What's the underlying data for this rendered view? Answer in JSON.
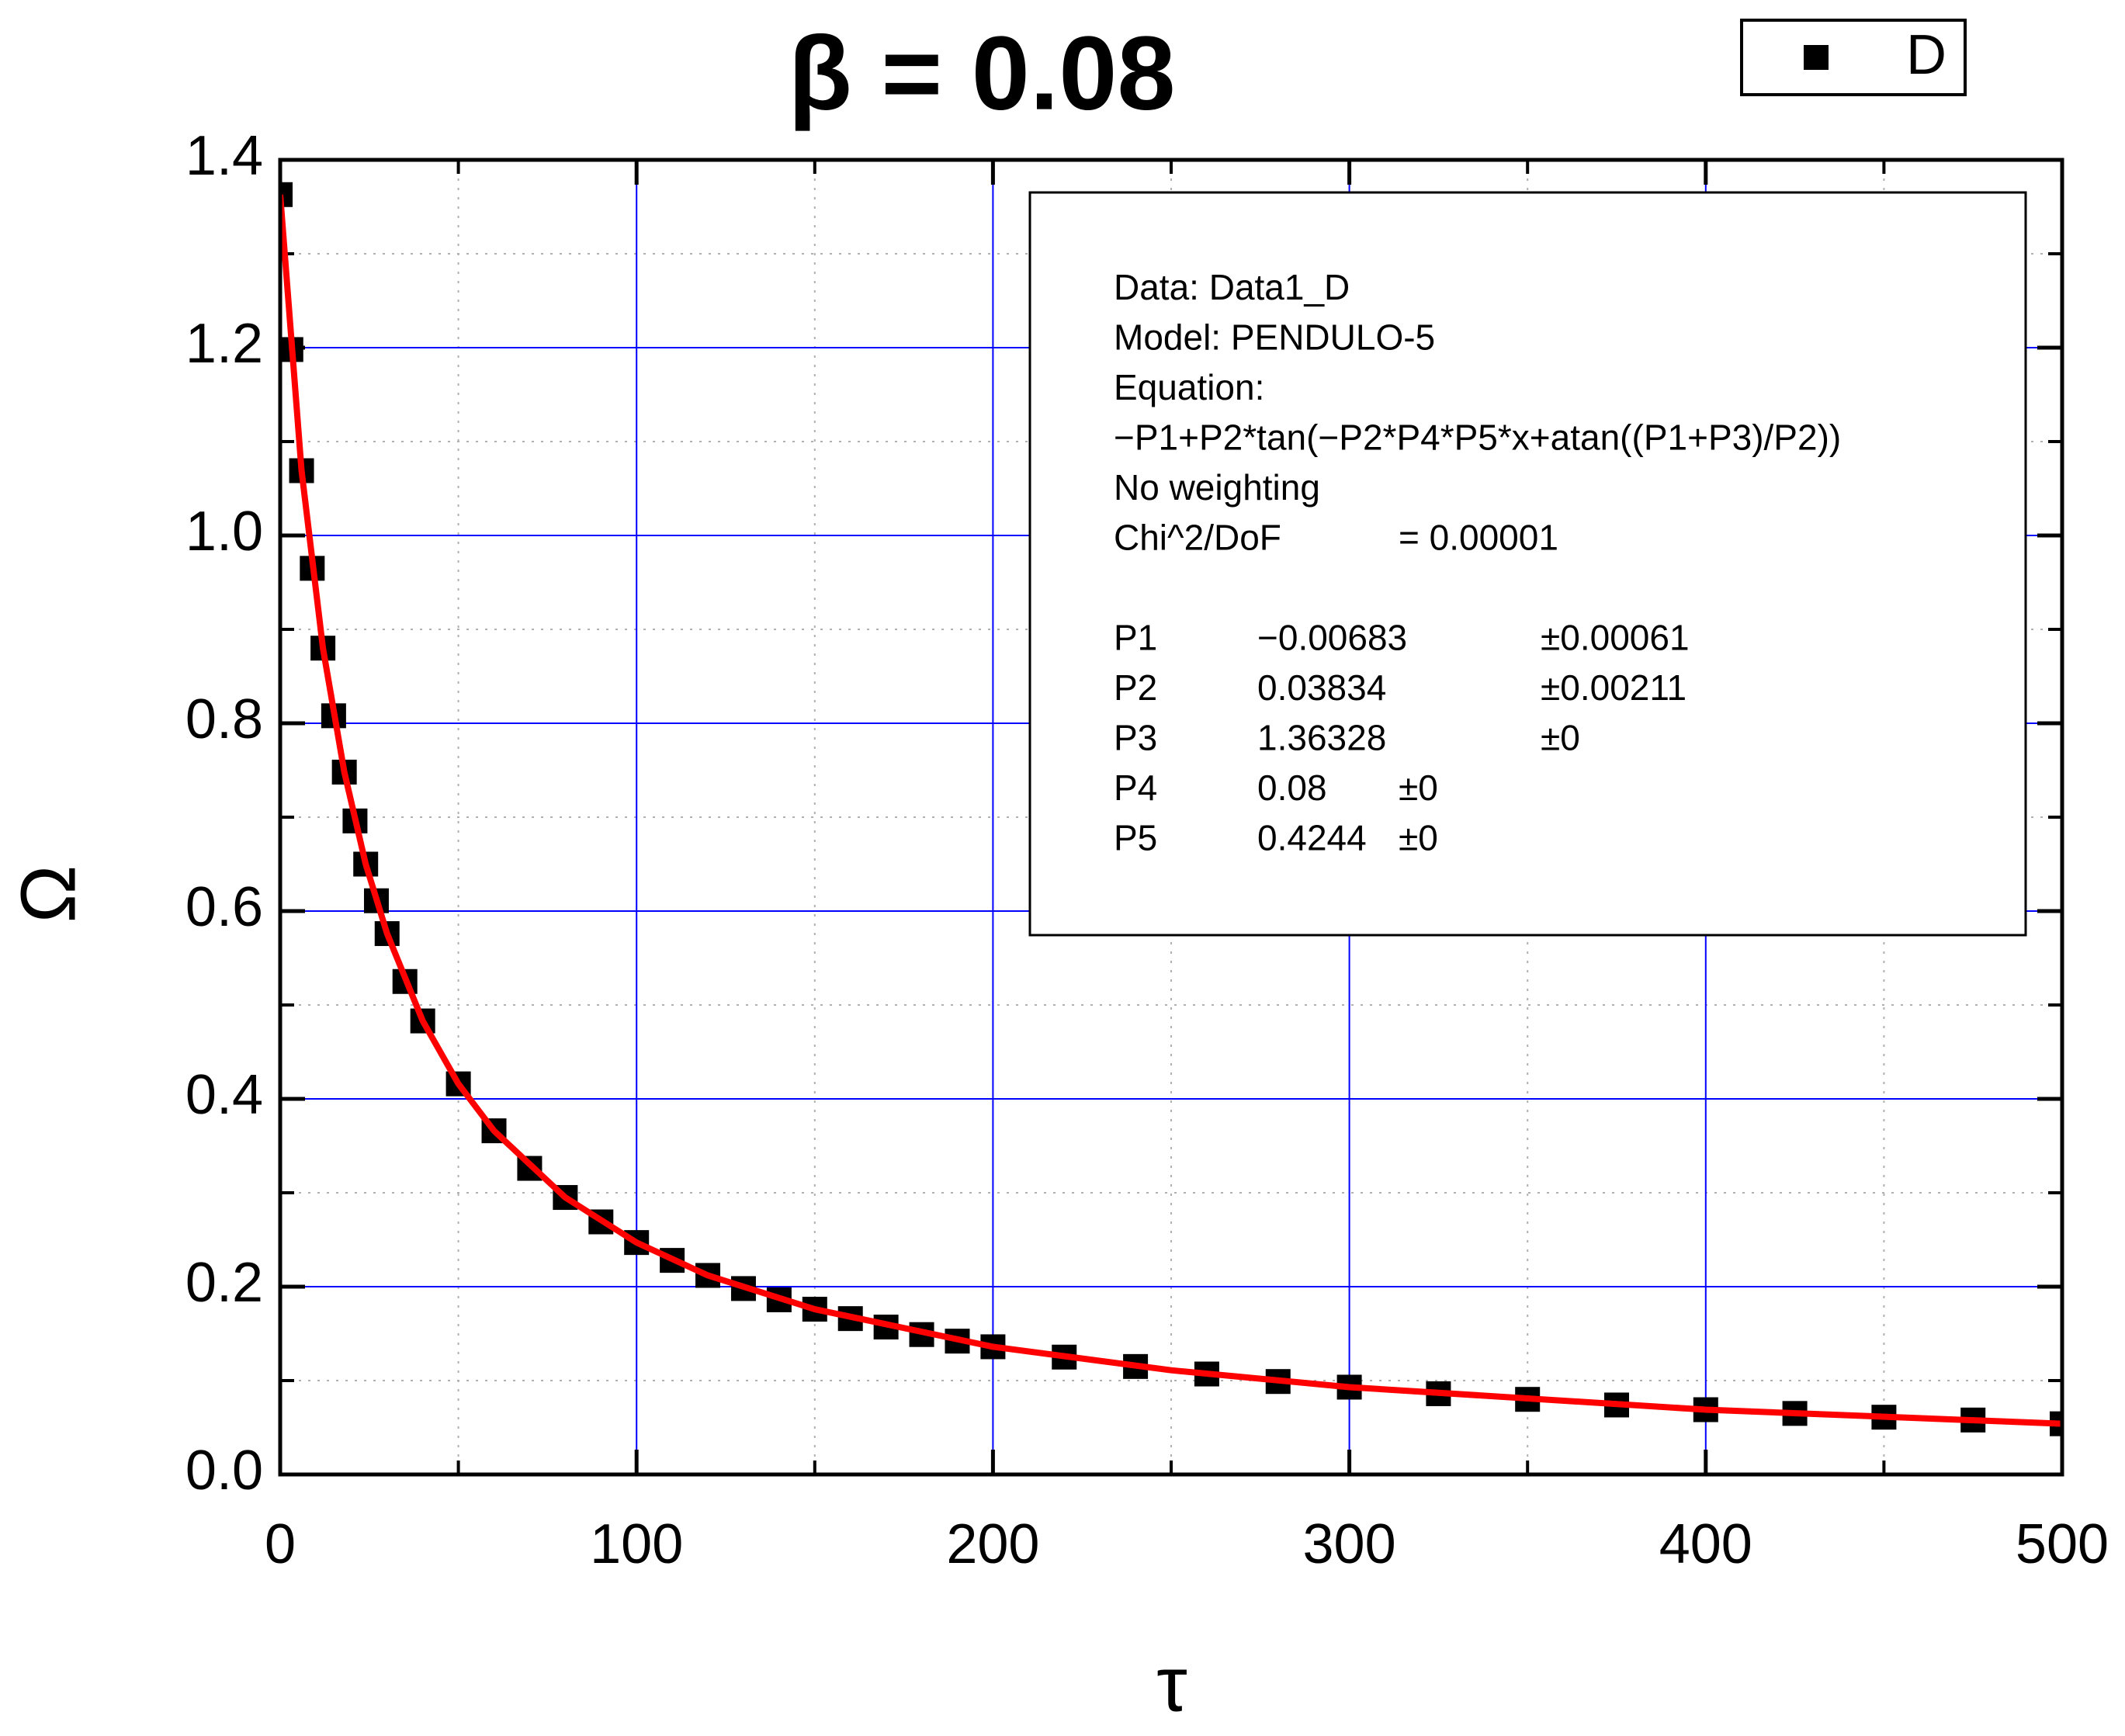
{
  "chart_data": {
    "type": "scatter",
    "title": "β = 0.08",
    "x_label": "τ",
    "y_label": "Ω",
    "xlim": [
      0,
      500
    ],
    "xticks": [
      0,
      100,
      200,
      300,
      400,
      500
    ],
    "ylim": [
      0,
      1.4
    ],
    "yticks": [
      {
        "value": 0,
        "label": "0.0"
      },
      0.2,
      0.4,
      0.6,
      0.8,
      {
        "value": 1,
        "label": "1.0"
      },
      1.2,
      1.4
    ],
    "grid": true,
    "grid_color": "#0000ff",
    "legend": "top-right",
    "series": [
      {
        "name": "D",
        "type": "scatter",
        "color": "#000000",
        "x": [
          0,
          3,
          6,
          9,
          12,
          15,
          18,
          21,
          24,
          27,
          30,
          35,
          40,
          50,
          60,
          70,
          80,
          90,
          100,
          110,
          120,
          130,
          140,
          150,
          160,
          170,
          180,
          190,
          200,
          220,
          240,
          260,
          280,
          300,
          325,
          350,
          375,
          400,
          425,
          450,
          475,
          500
        ],
        "values": [
          1.363,
          1.198,
          1.069,
          0.965,
          0.88,
          0.808,
          0.748,
          0.696,
          0.65,
          0.611,
          0.576,
          0.525,
          0.483,
          0.416,
          0.366,
          0.326,
          0.295,
          0.269,
          0.247,
          0.228,
          0.212,
          0.198,
          0.186,
          0.176,
          0.166,
          0.157,
          0.149,
          0.142,
          0.136,
          0.125,
          0.115,
          0.107,
          0.099,
          0.093,
          0.086,
          0.08,
          0.074,
          0.069,
          0.065,
          0.061,
          0.058,
          0.054
        ]
      },
      {
        "type": "line",
        "color": "#ff0000",
        "x": [
          0,
          6,
          12,
          18,
          24,
          30,
          40,
          50,
          60,
          80,
          100,
          120,
          150,
          200,
          250,
          300,
          400,
          500
        ],
        "values": [
          1.363,
          1.069,
          0.88,
          0.748,
          0.65,
          0.576,
          0.483,
          0.416,
          0.366,
          0.295,
          0.247,
          0.212,
          0.176,
          0.136,
          0.111,
          0.093,
          0.069,
          0.054
        ]
      }
    ],
    "fit_report": {
      "lines": [
        "Data: Data1_D",
        "Model: PENDULO-5",
        "Equation:",
        "−P1+P2*tan(−P2*P4*P5*x+atan((P1+P3)/P2))",
        "No weighting"
      ],
      "chi_label": "Chi^2/DoF",
      "chi_value": "= 0.00001",
      "params": [
        [
          "P1",
          "−0.00683",
          "±0.00061"
        ],
        [
          "P2",
          "0.03834",
          "±0.00211"
        ],
        [
          "P3",
          "1.36328",
          "±0"
        ],
        [
          "P4",
          "0.08",
          "±0"
        ],
        [
          "P5",
          "0.4244",
          "±0"
        ]
      ]
    }
  }
}
